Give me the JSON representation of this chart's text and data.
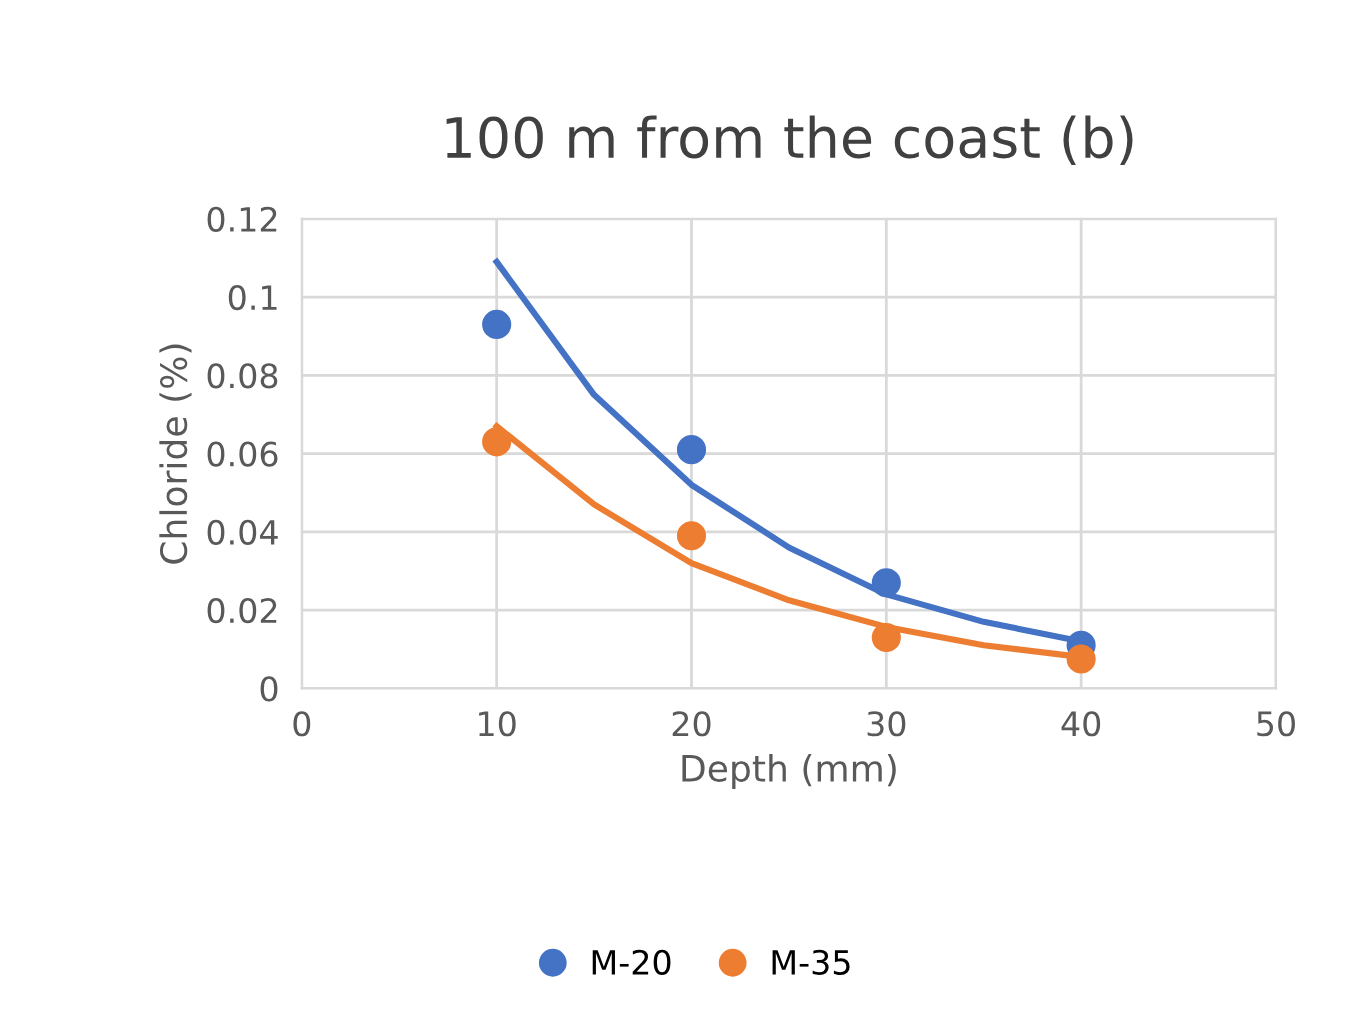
{
  "chart_data": {
    "type": "scatter",
    "title": "100 m from the coast (b)",
    "xlabel": "Depth (mm)",
    "ylabel": "Chloride (%)",
    "x": [
      10,
      20,
      30,
      40
    ],
    "series": [
      {
        "name": "M-20",
        "color": "#4472c4",
        "values": [
          0.093,
          0.061,
          0.027,
          0.011
        ],
        "marker": "circle"
      },
      {
        "name": "M-35",
        "color": "#ed7d31",
        "values": [
          0.063,
          0.039,
          0.013,
          0.0075
        ],
        "marker": "circle"
      },
      {
        "type": "line",
        "color": "#4472c4",
        "x": [
          10,
          15,
          20,
          25,
          30,
          35,
          40
        ],
        "values": [
          0.109,
          0.075,
          0.052,
          0.036,
          0.024,
          0.017,
          0.012
        ]
      },
      {
        "type": "line",
        "color": "#ed7d31",
        "x": [
          10,
          15,
          20,
          25,
          30,
          35,
          40
        ],
        "values": [
          0.067,
          0.047,
          0.032,
          0.0225,
          0.0157,
          0.011,
          0.008
        ]
      }
    ],
    "xlim": [
      0,
      50
    ],
    "xticks": [
      0,
      10,
      20,
      30,
      40,
      50
    ],
    "ylim": [
      0,
      0.12
    ],
    "yticks": [
      0,
      0.02,
      0.04,
      0.06,
      0.08,
      0.1,
      0.12
    ],
    "grid": true,
    "legend": "bottom"
  }
}
